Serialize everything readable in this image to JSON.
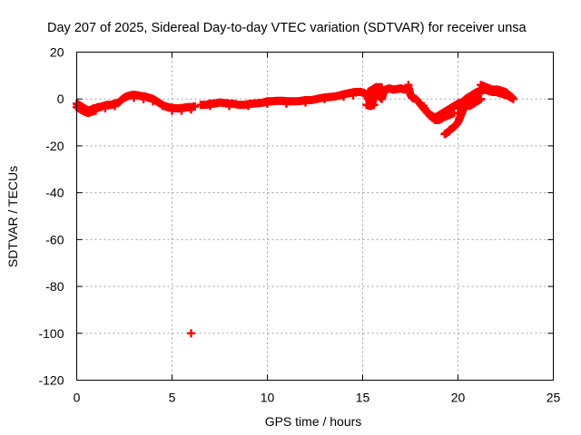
{
  "chart_data": {
    "type": "scatter",
    "title": "Day 207 of 2025, Sidereal Day-to-day VTEC variation (SDTVAR) for receiver unsa",
    "xlabel": "GPS time / hours",
    "ylabel": "SDTVAR / TECUs",
    "xlim": [
      0,
      25
    ],
    "ylim": [
      -120,
      20
    ],
    "xticks": [
      "0",
      "5",
      "10",
      "15",
      "20",
      "25"
    ],
    "yticks": [
      "20",
      "0",
      "-20",
      "-40",
      "-60",
      "-80",
      "-100",
      "-120"
    ],
    "grid": true,
    "marker": "plus",
    "series": [
      {
        "name": "SDTVAR",
        "color": "#ff0000",
        "points": [
          [
            0.0,
            -2
          ],
          [
            0.1,
            -2.5
          ],
          [
            0.2,
            -3
          ],
          [
            0.3,
            -3.5
          ],
          [
            0.4,
            -4
          ],
          [
            0.5,
            -4.5
          ],
          [
            0.6,
            -5
          ],
          [
            0.7,
            -4.8
          ],
          [
            0.8,
            -4.5
          ],
          [
            0.9,
            -4
          ],
          [
            1.0,
            -4
          ],
          [
            1.1,
            -3.5
          ],
          [
            1.2,
            -3.5
          ],
          [
            1.4,
            -3
          ],
          [
            1.6,
            -2.5
          ],
          [
            1.8,
            -2.5
          ],
          [
            2.0,
            -2
          ],
          [
            2.2,
            -1.5
          ],
          [
            2.4,
            0
          ],
          [
            2.6,
            1
          ],
          [
            2.8,
            1.5
          ],
          [
            3.0,
            1.8
          ],
          [
            3.2,
            1.5
          ],
          [
            3.4,
            1.2
          ],
          [
            3.6,
            1
          ],
          [
            3.8,
            0.5
          ],
          [
            4.0,
            0
          ],
          [
            4.2,
            -1
          ],
          [
            4.4,
            -2
          ],
          [
            4.6,
            -3
          ],
          [
            4.8,
            -3.5
          ],
          [
            5.0,
            -3.8
          ],
          [
            5.2,
            -4
          ],
          [
            5.4,
            -4
          ],
          [
            5.6,
            -3.8
          ],
          [
            5.8,
            -3.5
          ],
          [
            6.0,
            -3.5
          ],
          [
            6.2,
            -3.2
          ],
          [
            0.0,
            -3.5
          ],
          [
            0.3,
            -5
          ],
          [
            0.6,
            -6
          ],
          [
            1.0,
            -5
          ],
          [
            1.5,
            -4
          ],
          [
            2.0,
            -3
          ],
          [
            2.5,
            0.5
          ],
          [
            3.0,
            0.5
          ],
          [
            3.5,
            0
          ],
          [
            4.0,
            -1
          ],
          [
            4.5,
            -3
          ],
          [
            5.0,
            -5
          ],
          [
            5.5,
            -5
          ],
          [
            6.0,
            -4.5
          ],
          [
            6.5,
            -2.5
          ],
          [
            6.8,
            -2.5
          ],
          [
            7.0,
            -2
          ],
          [
            7.2,
            -2
          ],
          [
            7.5,
            -1.5
          ],
          [
            7.8,
            -1.8
          ],
          [
            8.0,
            -2
          ],
          [
            8.2,
            -2
          ],
          [
            8.5,
            -2.5
          ],
          [
            8.8,
            -2.5
          ],
          [
            9.0,
            -2.2
          ],
          [
            9.2,
            -2
          ],
          [
            9.5,
            -1.8
          ],
          [
            9.8,
            -1.5
          ],
          [
            10.0,
            -1
          ],
          [
            10.2,
            -1
          ],
          [
            10.5,
            -0.8
          ],
          [
            10.8,
            -0.8
          ],
          [
            11.0,
            -1
          ],
          [
            11.2,
            -1
          ],
          [
            11.5,
            -1
          ],
          [
            11.8,
            -0.8
          ],
          [
            12.0,
            -0.5
          ],
          [
            12.3,
            -0.5
          ],
          [
            12.6,
            0
          ],
          [
            12.9,
            0.5
          ],
          [
            13.2,
            0.8
          ],
          [
            13.5,
            1
          ],
          [
            13.8,
            1.5
          ],
          [
            14.0,
            2
          ],
          [
            14.3,
            2.5
          ],
          [
            14.6,
            3
          ],
          [
            14.9,
            3
          ],
          [
            15.1,
            2.5
          ],
          [
            7.0,
            -3
          ],
          [
            8.0,
            -3
          ],
          [
            9.0,
            -3
          ],
          [
            10.0,
            -2
          ],
          [
            11.0,
            -2
          ],
          [
            12.0,
            -1.5
          ],
          [
            13.0,
            0
          ],
          [
            14.0,
            1
          ],
          [
            14.5,
            1.5
          ],
          [
            15.2,
            2
          ],
          [
            15.3,
            0
          ],
          [
            15.4,
            -1
          ],
          [
            15.5,
            -2
          ],
          [
            15.6,
            1
          ],
          [
            15.7,
            3
          ],
          [
            15.8,
            4
          ],
          [
            15.9,
            1
          ],
          [
            16.0,
            0
          ],
          [
            16.1,
            3
          ],
          [
            16.2,
            4
          ],
          [
            16.4,
            4.5
          ],
          [
            16.6,
            4
          ],
          [
            16.8,
            4.2
          ],
          [
            17.0,
            4.5
          ],
          [
            17.2,
            4
          ],
          [
            17.4,
            5
          ],
          [
            17.5,
            2
          ],
          [
            17.6,
            0.5
          ],
          [
            17.8,
            0
          ],
          [
            18.0,
            -2
          ],
          [
            18.2,
            -4
          ],
          [
            18.4,
            -6
          ],
          [
            18.6,
            -7
          ],
          [
            18.8,
            -8
          ],
          [
            19.0,
            -7
          ],
          [
            19.2,
            -6
          ],
          [
            19.4,
            -5
          ],
          [
            19.6,
            -4
          ],
          [
            19.8,
            -3
          ],
          [
            20.0,
            -2
          ],
          [
            20.2,
            -1.5
          ],
          [
            20.4,
            0
          ],
          [
            20.6,
            1
          ],
          [
            20.8,
            2
          ],
          [
            21.0,
            3
          ],
          [
            21.2,
            3.5
          ],
          [
            21.4,
            4
          ],
          [
            21.6,
            3.5
          ],
          [
            21.8,
            3
          ],
          [
            22.0,
            3
          ],
          [
            22.2,
            2.5
          ],
          [
            22.4,
            2
          ],
          [
            22.6,
            1.5
          ],
          [
            22.8,
            0.5
          ],
          [
            17.4,
            6
          ],
          [
            15.3,
            3
          ],
          [
            15.5,
            4
          ],
          [
            15.7,
            5
          ],
          [
            16.0,
            5
          ],
          [
            15.2,
            -2.5
          ],
          [
            15.4,
            -3
          ],
          [
            15.6,
            -2.5
          ],
          [
            18.2,
            -3
          ],
          [
            18.5,
            -7
          ],
          [
            18.8,
            -9
          ],
          [
            19.0,
            -9
          ],
          [
            19.2,
            -8
          ],
          [
            19.5,
            -7
          ],
          [
            19.8,
            -6
          ],
          [
            19.3,
            -15
          ],
          [
            19.5,
            -14
          ],
          [
            19.6,
            -13
          ],
          [
            19.8,
            -12
          ],
          [
            20.0,
            -10
          ],
          [
            20.1,
            -8
          ],
          [
            20.2,
            -6
          ],
          [
            20.3,
            -4
          ],
          [
            20.4,
            -2
          ],
          [
            20.6,
            -3
          ],
          [
            20.8,
            -2
          ],
          [
            21.0,
            -1
          ],
          [
            21.2,
            0
          ],
          [
            20.0,
            -4
          ],
          [
            20.2,
            -3
          ],
          [
            20.5,
            -1
          ],
          [
            20.8,
            0
          ],
          [
            21.0,
            1
          ],
          [
            21.3,
            5
          ],
          [
            21.2,
            6
          ],
          [
            21.5,
            5
          ],
          [
            21.8,
            4
          ],
          [
            22.1,
            4
          ],
          [
            22.5,
            3
          ],
          [
            22.8,
            1
          ],
          [
            22.9,
            0
          ],
          [
            6.0,
            -100
          ]
        ]
      }
    ]
  }
}
